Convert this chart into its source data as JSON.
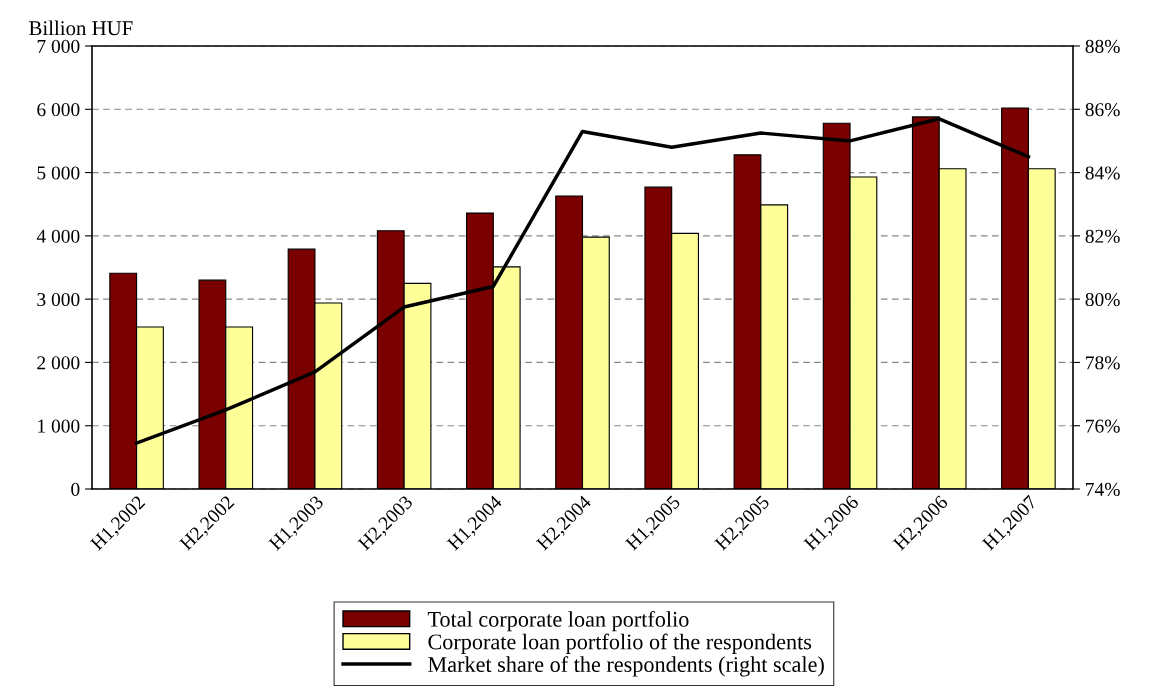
{
  "chart_data": {
    "type": "bar",
    "ylabel": "Billion HUF",
    "categories": [
      "H1,2002",
      "H2,2002",
      "H1,2003",
      "H2,2003",
      "H1,2004",
      "H2,2004",
      "H1,2005",
      "H2,2005",
      "H1,2006",
      "H2,2006",
      "H1,2007"
    ],
    "series": [
      {
        "name": "Total corporate loan portfolio",
        "color": "#7a0000",
        "values": [
          3410,
          3300,
          3790,
          4080,
          4360,
          4630,
          4770,
          5280,
          5780,
          5880,
          6020
        ]
      },
      {
        "name": "Corporate loan portfolio of the respondents",
        "color": "#ffff99",
        "values": [
          2560,
          2560,
          2940,
          3250,
          3510,
          3980,
          4040,
          4490,
          4930,
          5060,
          5060
        ]
      },
      {
        "name": "Market share of the respondents (right scale)",
        "type": "line",
        "axis": "y2",
        "color": "#000000",
        "values": [
          75.45,
          76.5,
          77.7,
          79.75,
          80.4,
          85.3,
          84.8,
          85.25,
          85.0,
          85.7,
          84.5
        ]
      }
    ],
    "ylim": [
      0,
      7000
    ],
    "yticks": [
      0,
      {
        "value": 1000,
        "label": "1 000"
      },
      {
        "value": 2000,
        "label": "2 000"
      },
      {
        "value": 3000,
        "label": "3 000"
      },
      {
        "value": 4000,
        "label": "4 000"
      },
      {
        "value": 5000,
        "label": "5 000"
      },
      {
        "value": 6000,
        "label": "6 000"
      },
      {
        "value": 7000,
        "label": "7 000"
      }
    ],
    "y2lim": [
      74,
      88
    ],
    "y2ticks": [
      {
        "value": 74,
        "label": "74%"
      },
      {
        "value": 76,
        "label": "76%"
      },
      {
        "value": 78,
        "label": "78%"
      },
      {
        "value": 80,
        "label": "80%"
      },
      {
        "value": 82,
        "label": "82%"
      },
      {
        "value": 84,
        "label": "84%"
      },
      {
        "value": 86,
        "label": "86%"
      },
      {
        "value": 88,
        "label": "88%"
      }
    ],
    "grid": "y",
    "legend": "bottom",
    "line_style": "solid",
    "marker": "none"
  }
}
